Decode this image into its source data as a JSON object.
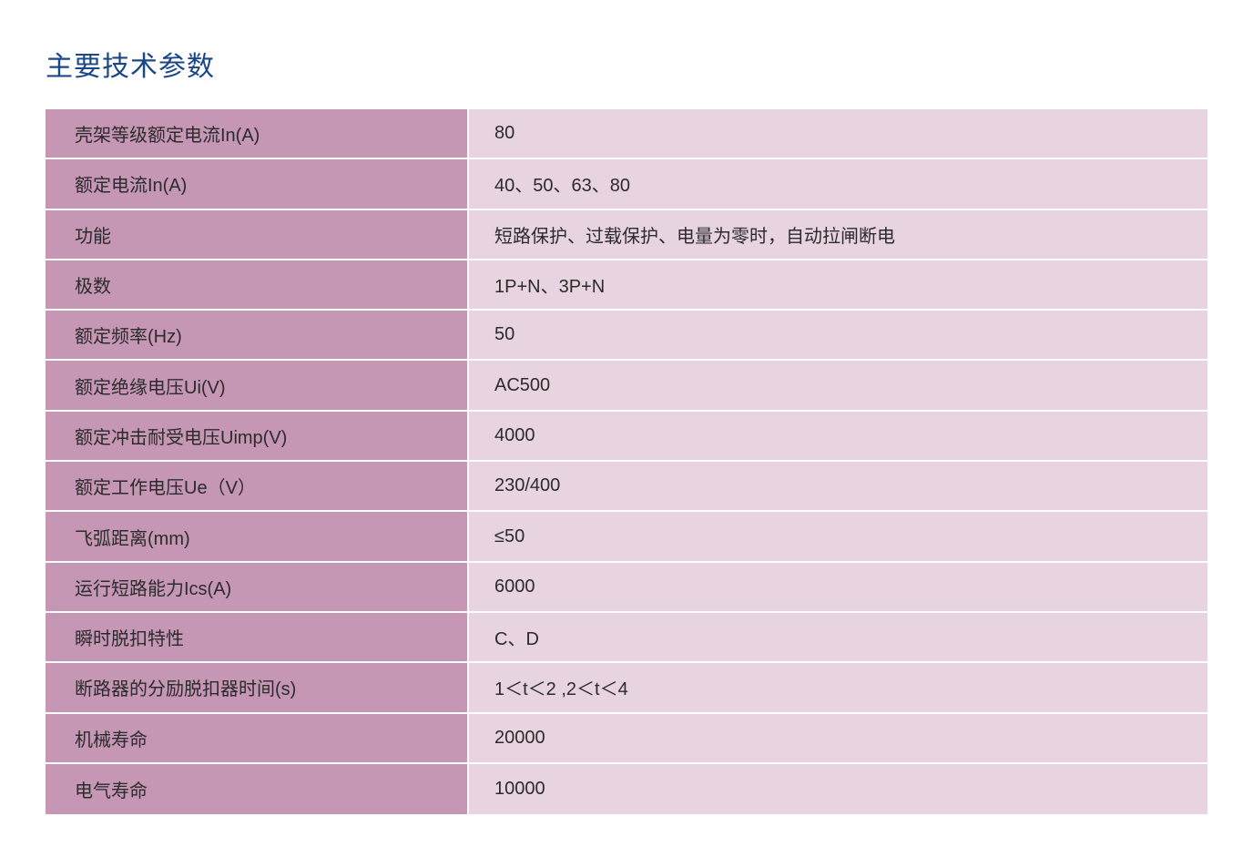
{
  "title": "主要技术参数",
  "title_color": "#1a4788",
  "table": {
    "label_bg_color": "#c597b5",
    "value_bg_color": "#e8d3e0",
    "text_color": "#2b2b2b",
    "border_color": "#ffffff",
    "font_size": 20,
    "row_height": 55.3,
    "label_width": 465,
    "rows": [
      {
        "label": "壳架等级额定电流In(A)",
        "value": "80"
      },
      {
        "label": "额定电流In(A)",
        "value": "40、50、63、80"
      },
      {
        "label": "功能",
        "value": "短路保护、过载保护、电量为零时，自动拉闸断电"
      },
      {
        "label": "极数",
        "value": "1P+N、3P+N"
      },
      {
        "label": "额定频率(Hz)",
        "value": "50"
      },
      {
        "label": "额定绝缘电压Ui(V)",
        "value": "AC500"
      },
      {
        "label": "额定冲击耐受电压Uimp(V)",
        "value": "4000"
      },
      {
        "label": "额定工作电压Ue（V）",
        "value": "230/400"
      },
      {
        "label": "飞弧距离(mm)",
        "value": "≤50"
      },
      {
        "label": "运行短路能力Ics(A)",
        "value": "6000"
      },
      {
        "label": "瞬时脱扣特性",
        "value": "C、D"
      },
      {
        "label": "断路器的分励脱扣器时间(s)",
        "value": "1＜t＜2 ,2＜t＜4"
      },
      {
        "label": "机械寿命",
        "value": "20000"
      },
      {
        "label": "电气寿命",
        "value": "10000"
      }
    ]
  }
}
